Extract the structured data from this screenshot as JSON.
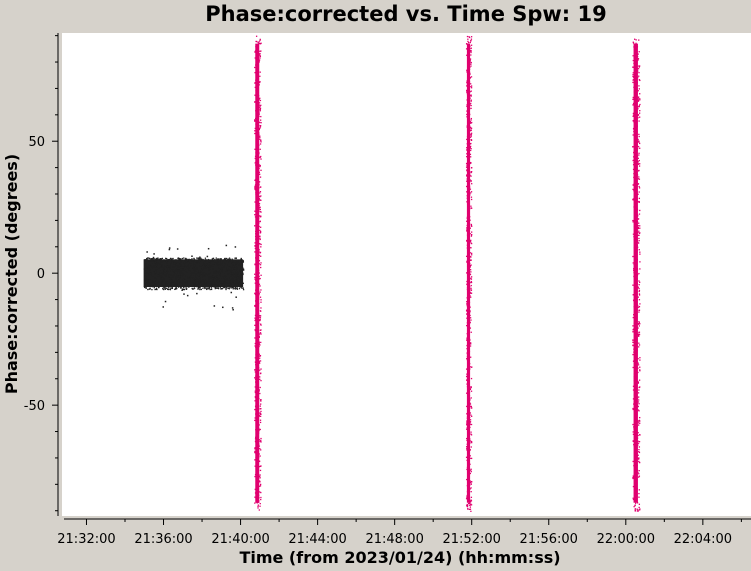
{
  "chart_data": {
    "type": "scatter",
    "title": "Phase:corrected vs. Time Spw: 19",
    "xlabel": "Time (from 2023/01/24) (hh:mm:ss)",
    "ylabel": "Phase:corrected (degrees)",
    "xlim": [
      "21:30:50",
      "22:06:30"
    ],
    "ylim": [
      -92,
      91
    ],
    "x_ticks": [
      "21:32:00",
      "21:36:00",
      "21:40:00",
      "21:44:00",
      "21:48:00",
      "21:52:00",
      "21:56:00",
      "22:00:00",
      "22:04:00"
    ],
    "y_ticks": [
      -50,
      0,
      50
    ],
    "grid": false,
    "series": [
      {
        "color": "#222222",
        "x_range": [
          "21:34:58",
          "21:40:08"
        ],
        "y_range": [
          -6,
          6
        ],
        "outlier_y_range": [
          -14,
          11
        ]
      },
      {
        "color": "#e0006f",
        "scans": [
          {
            "x_range": [
              "21:40:42",
              "21:41:02"
            ],
            "y_range": [
              -90,
              90
            ]
          },
          {
            "x_range": [
              "21:51:42",
              "21:51:58"
            ],
            "y_range": [
              -90,
              90
            ]
          },
          {
            "x_range": [
              "22:00:20",
              "22:00:42"
            ],
            "y_range": [
              -90,
              90
            ]
          }
        ]
      }
    ]
  }
}
